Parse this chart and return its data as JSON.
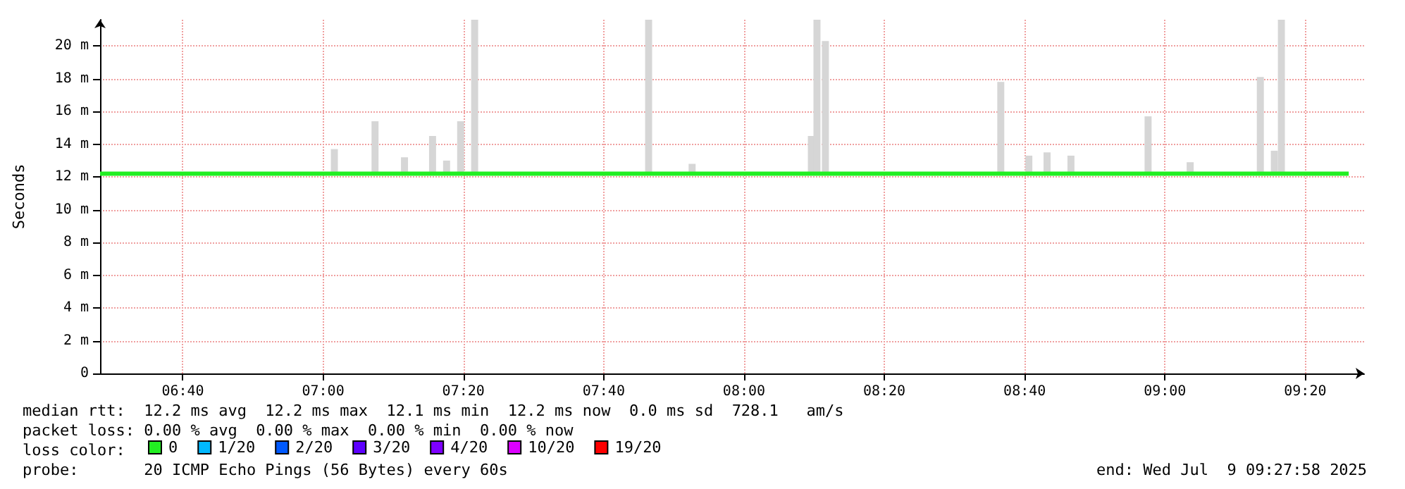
{
  "chart_data": {
    "type": "line",
    "ylabel": "Seconds",
    "xlim": [
      6.47,
      9.4733
    ],
    "ylim": [
      0,
      21.6
    ],
    "xticks": [
      {
        "value": 6.6667,
        "label": "06:40"
      },
      {
        "value": 7,
        "label": "07:00"
      },
      {
        "value": 7.3333,
        "label": "07:20"
      },
      {
        "value": 7.6667,
        "label": "07:40"
      },
      {
        "value": 8,
        "label": "08:00"
      },
      {
        "value": 8.3333,
        "label": "08:20"
      },
      {
        "value": 8.6667,
        "label": "08:40"
      },
      {
        "value": 9,
        "label": "09:00"
      },
      {
        "value": 9.3333,
        "label": "09:20"
      }
    ],
    "yticks": [
      0,
      {
        "value": 2,
        "label": "2 m"
      },
      {
        "value": 4,
        "label": "4 m"
      },
      {
        "value": 6,
        "label": "6 m"
      },
      {
        "value": 8,
        "label": "8 m"
      },
      {
        "value": 10,
        "label": "10 m"
      },
      {
        "value": 12,
        "label": "12 m"
      },
      {
        "value": 14,
        "label": "14 m"
      },
      {
        "value": 16,
        "label": "16 m"
      },
      {
        "value": 18,
        "label": "18 m"
      },
      {
        "value": 20,
        "label": "20 m"
      }
    ],
    "grid": true,
    "legend": "bottom",
    "legend_title": "loss color:",
    "series": [
      {
        "type": "bar",
        "color": "#d6d6d6",
        "x": [
          7.0267,
          7.1233,
          7.1933,
          7.26,
          7.2933,
          7.3267,
          7.36,
          7.7733,
          7.8767,
          8.16,
          8.1733,
          8.1933,
          8.61,
          8.6767,
          8.72,
          8.7767,
          8.96,
          9.06,
          9.2267,
          9.26,
          9.2767
        ],
        "base": [
          12.1,
          12.1,
          12.1,
          12.1,
          12.1,
          12.1,
          12.1,
          12.1,
          12.1,
          12.1,
          12.1,
          12.1,
          12.1,
          12.1,
          12.1,
          12.1,
          12.1,
          12.1,
          12.1,
          12.1,
          12.1
        ],
        "values": [
          1.6,
          3.3,
          1.1,
          2.4,
          0.9,
          3.3,
          9.5,
          9.5,
          0.7,
          2.4,
          9.5,
          8.2,
          5.7,
          1.2,
          1.4,
          1.2,
          3.6,
          0.8,
          6.0,
          1.5,
          9.5
        ]
      },
      {
        "name": "0",
        "color": "#22ee22",
        "x": [
          6.47,
          6.5833,
          6.6667,
          6.75,
          6.8333,
          6.9167,
          7,
          7.0833,
          7.1667,
          7.25,
          7.3333,
          7.4167,
          7.5,
          7.5833,
          7.6667,
          7.75,
          7.8333,
          7.9167,
          8,
          8.0833,
          8.1667,
          8.25,
          8.3333,
          8.4167,
          8.5,
          8.5833,
          8.6667,
          8.75,
          8.8333,
          8.9167,
          9,
          9.0833,
          9.1667,
          9.25,
          9.3333,
          9.4367
        ],
        "values": [
          12.2,
          12.2,
          12.2,
          12.2,
          12.2,
          12.2,
          12.2,
          12.2,
          12.2,
          12.2,
          12.2,
          12.2,
          12.2,
          12.2,
          12.2,
          12.2,
          12.2,
          12.2,
          12.2,
          12.2,
          12.2,
          12.2,
          12.2,
          12.2,
          12.2,
          12.2,
          12.2,
          12.2,
          12.2,
          12.2,
          12.2,
          12.2,
          12.2,
          12.2,
          12.2,
          12.2
        ]
      },
      {
        "name": "1/20",
        "color": "#00b8ff"
      },
      {
        "name": "2/20",
        "color": "#0059ff"
      },
      {
        "name": "3/20",
        "color": "#5e00ff"
      },
      {
        "name": "4/20",
        "color": "#7e00ff"
      },
      {
        "name": "10/20",
        "color": "#dd00ff"
      },
      {
        "name": "19/20",
        "color": "#ff0000"
      }
    ],
    "annotations": [
      "median rtt:  12.2 ms avg  12.2 ms max  12.1 ms min  12.2 ms now  0.0 ms sd  728.1   am/s",
      "packet loss: 0.00 % avg  0.00 % max  0.00 % min  0.00 % now",
      "probe:       20 ICMP Echo Pings (56 Bytes) every 60s",
      "end: Wed Jul  9 09:27:58 2025"
    ]
  }
}
